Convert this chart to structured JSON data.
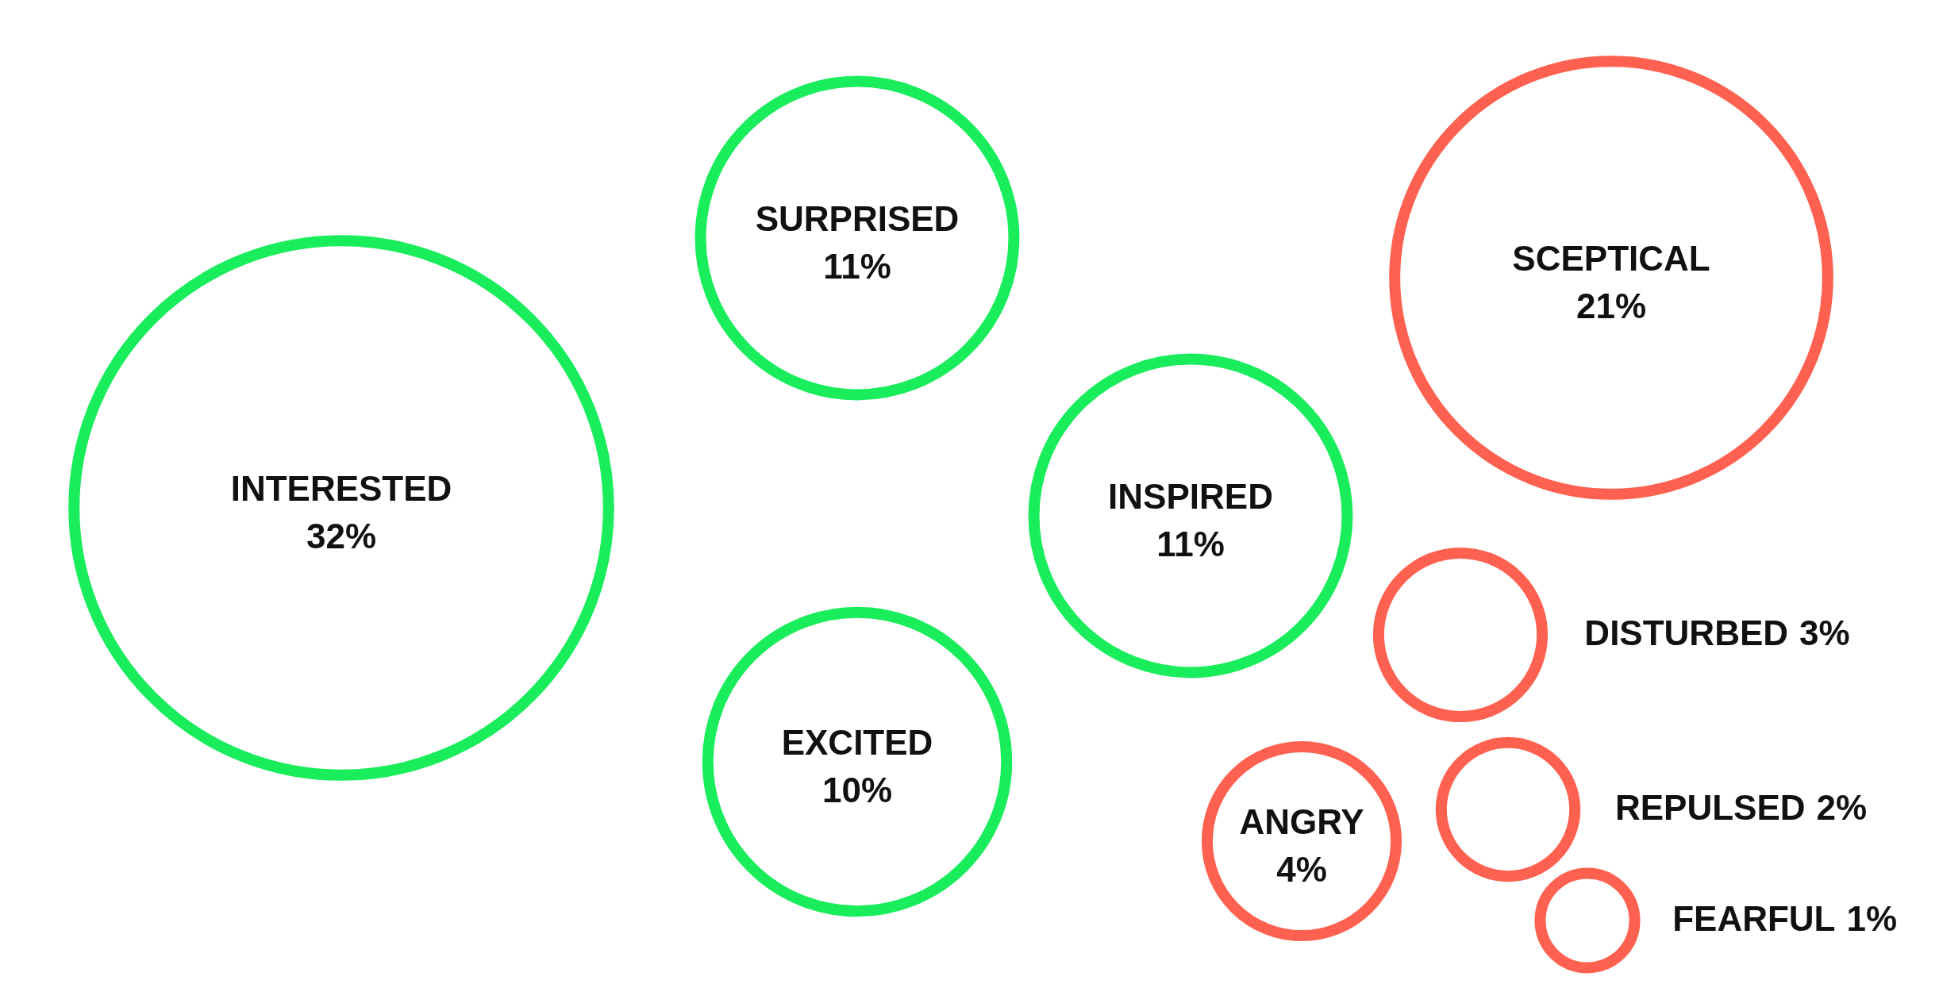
{
  "chart_data": {
    "type": "other",
    "categories": [
      "INTERESTED",
      "SURPRISED",
      "EXCITED",
      "INSPIRED",
      "SCEPTICAL",
      "DISTURBED",
      "ANGRY",
      "REPULSED",
      "FEARFUL"
    ],
    "values": [
      32,
      11,
      10,
      11,
      21,
      3,
      4,
      2,
      1
    ],
    "value_labels": [
      "32%",
      "11%",
      "10%",
      "11%",
      "21%",
      "3%",
      "4%",
      "2%",
      "1%"
    ],
    "colors": [
      "#19ed5c",
      "#19ed5c",
      "#19ed5c",
      "#19ed5c",
      "#ff6150",
      "#ff6150",
      "#ff6150",
      "#ff6150",
      "#ff6150"
    ]
  }
}
